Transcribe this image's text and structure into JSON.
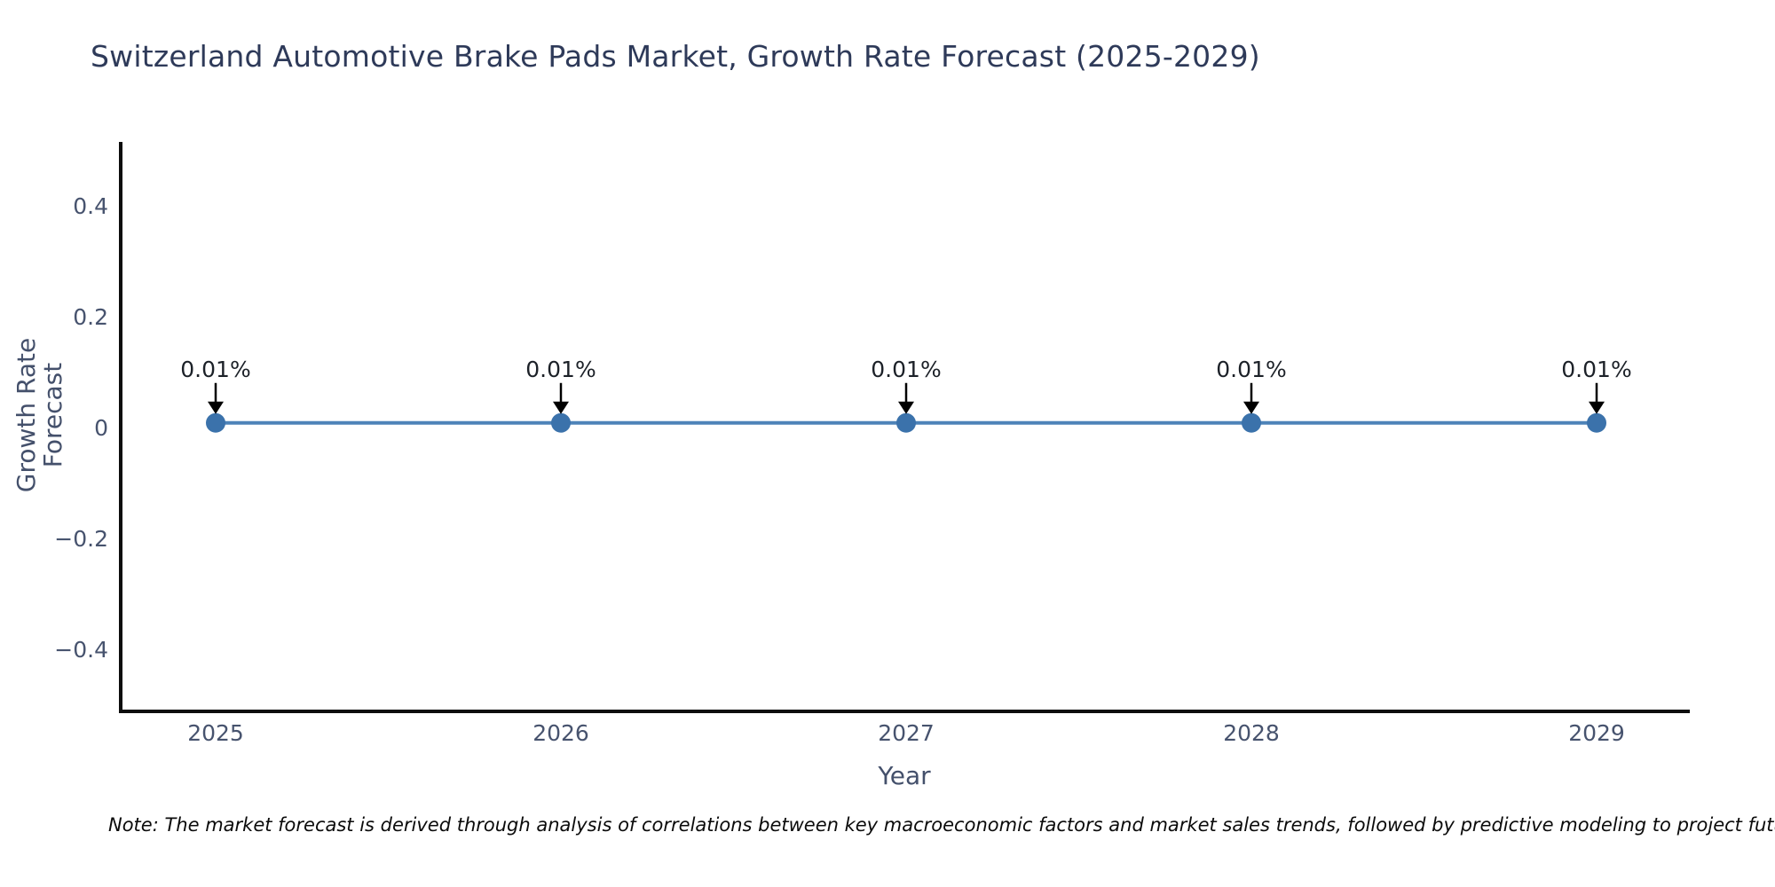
{
  "title": "Switzerland Automotive Brake Pads Market, Growth Rate Forecast (2025-2029)",
  "chart_data": {
    "type": "line",
    "title": "Switzerland Automotive Brake Pads Market, Growth Rate Forecast (2025-2029)",
    "x": [
      2025,
      2026,
      2027,
      2028,
      2029
    ],
    "values": [
      0.01,
      0.01,
      0.01,
      0.01,
      0.01
    ],
    "point_labels": [
      "0.01%",
      "0.01%",
      "0.01%",
      "0.01%",
      "0.01%"
    ],
    "series_name": "Growth Rate Forecast",
    "xlabel": "Year",
    "ylabel": "Growth Rate Forecast",
    "xticks": [
      "2025",
      "2026",
      "2027",
      "2028",
      "2029"
    ],
    "yticks": [
      "0.4",
      "0.2",
      "0",
      "−0.2",
      "−0.4"
    ],
    "ytick_values": [
      0.4,
      0.2,
      0,
      -0.2,
      -0.4
    ],
    "xlim": [
      2024.73,
      2029.27
    ],
    "ylim": [
      -0.515,
      0.515
    ],
    "grid": false,
    "legend": "none",
    "annotation_style": "text with downward black arrow to each marker",
    "colors": {
      "line": "#4d83b8",
      "marker": "#3b72ab",
      "arrow": "#000000",
      "spine": "#0d0d0d",
      "title_text": "#2e3a59",
      "tick_text": "#47536e",
      "background": "#ffffff"
    }
  },
  "note": "Note: The market forecast is derived through analysis of correlations between key macroeconomic factors and market sales trends, followed by predictive modeling to project future sa"
}
